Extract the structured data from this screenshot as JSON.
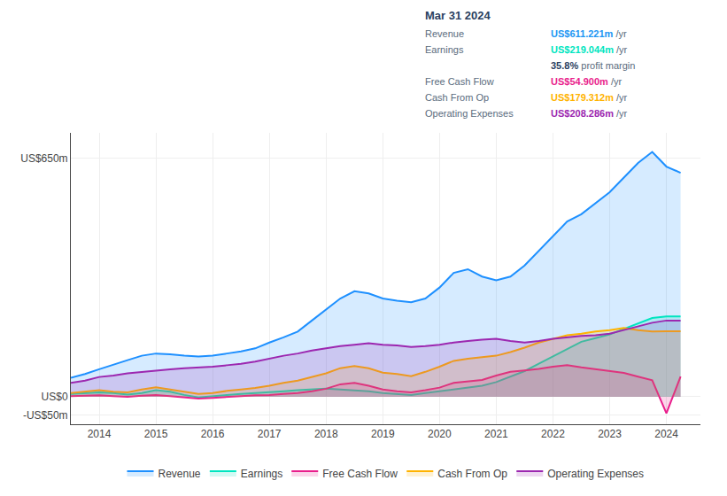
{
  "chart_data": {
    "type": "area",
    "x": [
      2013.5,
      2013.75,
      2014.0,
      2014.25,
      2014.5,
      2014.75,
      2015.0,
      2015.25,
      2015.5,
      2015.75,
      2016.0,
      2016.25,
      2016.5,
      2016.75,
      2017.0,
      2017.25,
      2017.5,
      2017.75,
      2018.0,
      2018.25,
      2018.5,
      2018.75,
      2019.0,
      2019.25,
      2019.5,
      2019.75,
      2020.0,
      2020.25,
      2020.5,
      2020.75,
      2021.0,
      2021.25,
      2021.5,
      2021.75,
      2022.0,
      2022.25,
      2022.5,
      2022.75,
      2023.0,
      2023.25,
      2023.5,
      2023.75,
      2024.0,
      2024.25
    ],
    "series": [
      {
        "name": "Revenue",
        "color": "#1e90ff",
        "values": [
          52,
          62,
          75,
          88,
          100,
          112,
          118,
          116,
          112,
          110,
          112,
          118,
          124,
          132,
          148,
          162,
          178,
          208,
          238,
          268,
          288,
          282,
          268,
          262,
          258,
          268,
          298,
          338,
          348,
          328,
          318,
          328,
          358,
          398,
          438,
          478,
          498,
          528,
          558,
          598,
          638,
          668,
          628,
          611
        ]
      },
      {
        "name": "Earnings",
        "color": "#00e5c0",
        "values": [
          8,
          10,
          12,
          10,
          6,
          10,
          18,
          14,
          5,
          -2,
          2,
          5,
          8,
          10,
          12,
          15,
          18,
          20,
          22,
          20,
          18,
          15,
          10,
          8,
          5,
          10,
          15,
          20,
          25,
          30,
          40,
          55,
          70,
          90,
          110,
          130,
          150,
          160,
          170,
          185,
          200,
          215,
          219,
          219
        ]
      },
      {
        "name": "Free Cash Flow",
        "color": "#e91e8c",
        "values": [
          2,
          3,
          4,
          2,
          0,
          3,
          5,
          2,
          -1,
          -5,
          -3,
          0,
          2,
          4,
          5,
          8,
          10,
          15,
          22,
          34,
          38,
          30,
          20,
          15,
          12,
          18,
          25,
          38,
          42,
          46,
          58,
          68,
          72,
          76,
          82,
          86,
          80,
          75,
          70,
          65,
          55,
          45,
          -45,
          55
        ]
      },
      {
        "name": "Cash From Op",
        "color": "#ffb300",
        "values": [
          10,
          14,
          18,
          14,
          12,
          20,
          26,
          20,
          14,
          8,
          10,
          16,
          20,
          24,
          30,
          38,
          44,
          54,
          64,
          78,
          84,
          78,
          66,
          62,
          56,
          68,
          82,
          98,
          104,
          108,
          112,
          122,
          134,
          148,
          158,
          168,
          172,
          178,
          182,
          188,
          182,
          178,
          179,
          179
        ]
      },
      {
        "name": "Operating Expenses",
        "color": "#9c27b0",
        "values": [
          38,
          44,
          54,
          58,
          64,
          68,
          72,
          75,
          78,
          80,
          82,
          86,
          90,
          96,
          104,
          112,
          118,
          126,
          132,
          138,
          142,
          146,
          142,
          140,
          136,
          138,
          142,
          148,
          152,
          156,
          158,
          152,
          148,
          152,
          158,
          162,
          166,
          168,
          172,
          182,
          192,
          202,
          208,
          208
        ]
      }
    ],
    "xlim": [
      2013.5,
      2024.6
    ],
    "xticks": [
      2014,
      2015,
      2016,
      2017,
      2018,
      2019,
      2020,
      2021,
      2022,
      2023,
      2024
    ],
    "ylim": [
      -75,
      720
    ],
    "yticks": [
      {
        "value": -50,
        "label": "-US$50m"
      },
      {
        "value": 0,
        "label": "US$0"
      },
      {
        "value": 650,
        "label": "US$650m"
      }
    ],
    "grid": true,
    "legend": "bottom",
    "annotations": [
      {
        "text": "Mar 31 2024"
      },
      {
        "label": "Revenue",
        "text": "US$611.221m",
        "suffix": " /yr",
        "color": "#2196f3"
      },
      {
        "label": "Earnings",
        "text": "US$219.044m",
        "suffix": " /yr",
        "color": "#00e5c0"
      },
      {
        "text": "35.8%",
        "suffix": " profit margin",
        "color": "#ffffff"
      },
      {
        "label": "Free Cash Flow",
        "text": "US$54.900m",
        "suffix": " /yr",
        "color": "#e91e8c"
      },
      {
        "label": "Cash From Op",
        "text": "US$179.312m",
        "suffix": " /yr",
        "color": "#ffb300"
      },
      {
        "label": "Operating Expenses",
        "text": "US$208.286m",
        "suffix": " /yr",
        "color": "#9c27b0"
      }
    ]
  }
}
